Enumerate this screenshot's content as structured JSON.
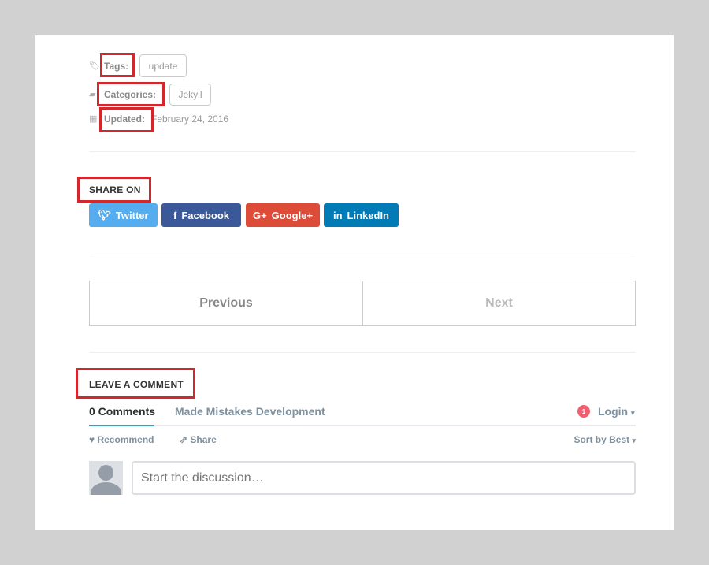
{
  "meta": {
    "tags_label": "Tags:",
    "tags": [
      "update"
    ],
    "categories_label": "Categories:",
    "categories": [
      "Jekyll"
    ],
    "updated_label": "Updated:",
    "updated_value": "February 24, 2016"
  },
  "share": {
    "heading": "SHARE ON",
    "buttons": [
      {
        "label": "Twitter",
        "icon": "twitter-icon",
        "color": "#55acee"
      },
      {
        "label": "Facebook",
        "icon": "facebook-icon",
        "color": "#3b5998"
      },
      {
        "label": "Google+",
        "icon": "google-plus-icon",
        "color": "#dd4b39"
      },
      {
        "label": "LinkedIn",
        "icon": "linkedin-icon",
        "color": "#007bb6"
      }
    ]
  },
  "pagination": {
    "previous": "Previous",
    "next": "Next"
  },
  "comments": {
    "heading": "LEAVE A COMMENT",
    "tab_count": "0 Comments",
    "tab_site": "Made Mistakes Development",
    "notification_count": "1",
    "login": "Login",
    "recommend": "Recommend",
    "share": "Share",
    "sort": "Sort by Best",
    "placeholder": "Start the discussion…"
  },
  "highlight_color": "#d0282d"
}
